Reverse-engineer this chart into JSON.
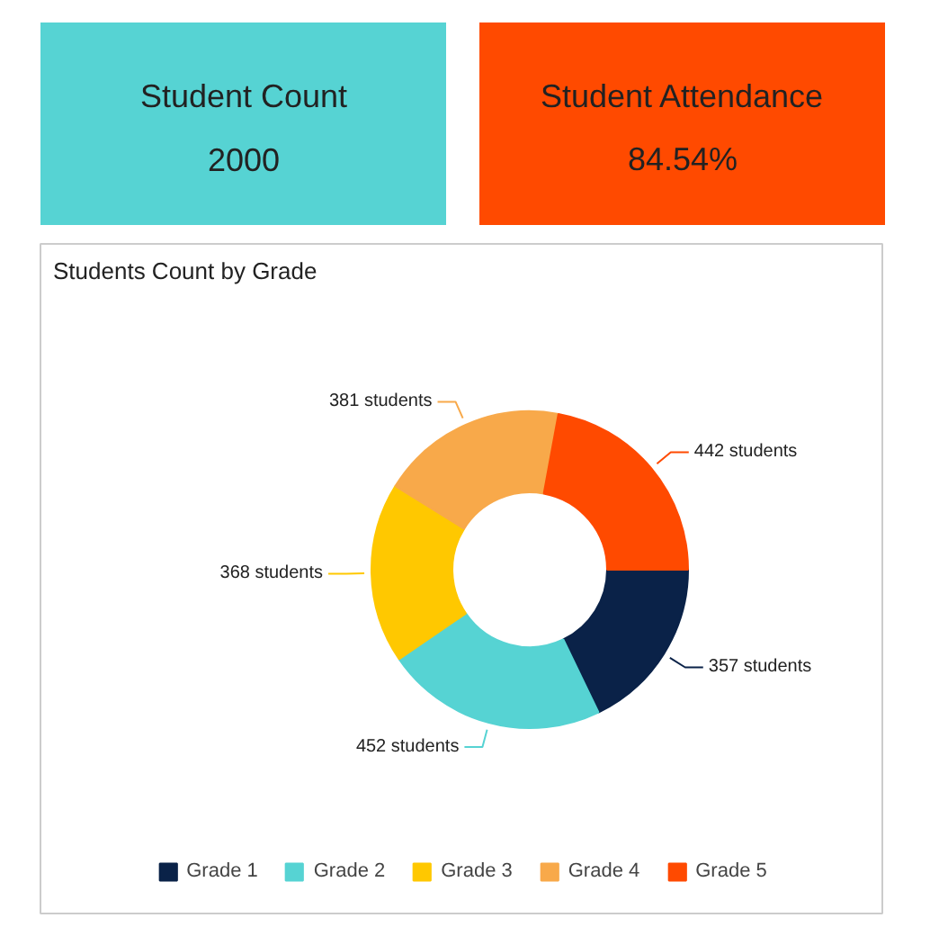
{
  "chart_data": [
    {
      "type": "other",
      "title": "Student Count",
      "annotations": [
        "2000"
      ],
      "color": "#56d3d3"
    },
    {
      "type": "other",
      "title": "Student Attendance",
      "annotations": [
        "84.54%"
      ],
      "color": "#ff4a00"
    },
    {
      "type": "donut",
      "title": "Students Count by Grade",
      "categories": [
        "Grade 1",
        "Grade 2",
        "Grade 3",
        "Grade 4",
        "Grade 5"
      ],
      "values": [
        357,
        452,
        368,
        381,
        442
      ],
      "colors": [
        "#0a2248",
        "#56d3d3",
        "#ffc800",
        "#f8a94a",
        "#ff4a00"
      ],
      "value_labels": [
        "357 students",
        "452 students",
        "368 students",
        "381 students",
        "442 students"
      ],
      "legend": "bottom"
    }
  ]
}
